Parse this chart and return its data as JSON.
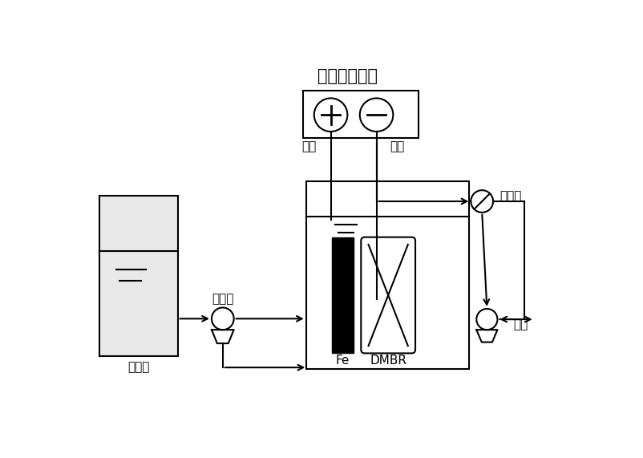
{
  "title": "电化学工作站",
  "label_yangji": "阳极",
  "label_yinji": "阴极",
  "label_jinshui": "进水槽",
  "label_ruodong": "蟠动泵",
  "label_yachaji": "压差计",
  "label_chushui": "出水",
  "label_fe": "Fe",
  "label_dmbr": "DMBR",
  "bg_color": "#ffffff",
  "line_color": "#000000",
  "font_size_title": 15,
  "font_size_label": 11
}
